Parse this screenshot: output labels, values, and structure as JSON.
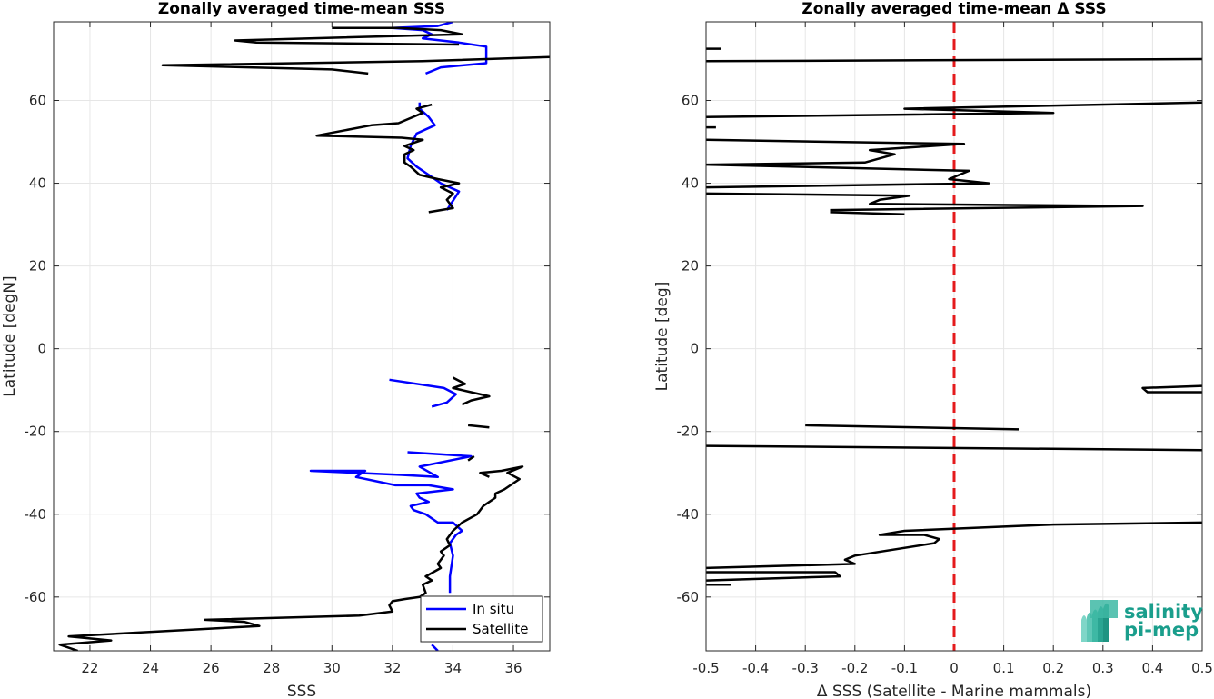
{
  "chart_data": [
    {
      "type": "line",
      "title": "Zonally averaged time-mean SSS",
      "xlabel": "SSS",
      "ylabel": "Latitude [degN]",
      "xlim": [
        20.8,
        37.2
      ],
      "ylim": [
        -73,
        79
      ],
      "xticks": [
        "22",
        "24",
        "26",
        "28",
        "30",
        "32",
        "34",
        "36"
      ],
      "yticks": [
        "-60",
        "-40",
        "-20",
        "0",
        "20",
        "40",
        "60"
      ],
      "grid": true,
      "legend_position": "bottom-right",
      "series": [
        {
          "name": "In situ",
          "color": "#0000ff",
          "segments": [
            [
              [
                33.3,
                -71.5
              ],
              [
                33.5,
                -73
              ]
            ],
            [
              [
                33.9,
                -59
              ],
              [
                33.9,
                -55
              ],
              [
                34.0,
                -50
              ],
              [
                33.9,
                -47
              ],
              [
                34.1,
                -45
              ],
              [
                34.3,
                -44
              ],
              [
                34.0,
                -42
              ],
              [
                33.5,
                -42
              ],
              [
                33.1,
                -40
              ],
              [
                32.7,
                -39
              ],
              [
                32.6,
                -38
              ],
              [
                33.2,
                -37
              ],
              [
                32.9,
                -36
              ],
              [
                32.8,
                -35
              ],
              [
                34.0,
                -34
              ],
              [
                33.2,
                -33
              ],
              [
                32.1,
                -33
              ],
              [
                30.8,
                -31
              ],
              [
                31.1,
                -29.5
              ],
              [
                29.3,
                -29.5
              ],
              [
                32.3,
                -30.5
              ],
              [
                33.5,
                -31
              ],
              [
                32.9,
                -28.5
              ],
              [
                34.6,
                -26
              ],
              [
                32.5,
                -25
              ]
            ],
            [
              [
                31.9,
                -7.5
              ],
              [
                33.7,
                -9.5
              ],
              [
                34.1,
                -11
              ],
              [
                33.8,
                -13
              ],
              [
                33.3,
                -14
              ]
            ],
            [
              [
                33.8,
                33.5
              ],
              [
                34.2,
                38
              ],
              [
                33.6,
                40
              ],
              [
                33.2,
                42
              ],
              [
                32.8,
                44
              ],
              [
                32.5,
                46
              ],
              [
                32.6,
                49
              ],
              [
                32.8,
                52
              ],
              [
                33.4,
                54
              ],
              [
                33.2,
                56
              ],
              [
                32.9,
                58
              ],
              [
                32.9,
                59.5
              ]
            ],
            [
              [
                33.1,
                66.5
              ],
              [
                33.6,
                68
              ],
              [
                35.1,
                69
              ],
              [
                35.1,
                70.5
              ],
              [
                35.1,
                73
              ],
              [
                34.2,
                74
              ],
              [
                33.0,
                75
              ],
              [
                33.3,
                76
              ],
              [
                33.0,
                77
              ],
              [
                32.0,
                77.5
              ],
              [
                33.5,
                78
              ],
              [
                34.0,
                79
              ]
            ]
          ]
        },
        {
          "name": "Satellite",
          "color": "#000000",
          "segments": [
            [
              [
                21.6,
                -73
              ],
              [
                21.0,
                -71.5
              ],
              [
                22.7,
                -70.5
              ],
              [
                21.3,
                -69.5
              ],
              [
                27.6,
                -67
              ],
              [
                27.1,
                -66
              ],
              [
                25.8,
                -65.5
              ],
              [
                30.9,
                -64.5
              ],
              [
                32.0,
                -63.5
              ],
              [
                31.9,
                -62
              ],
              [
                32.0,
                -61
              ],
              [
                32.4,
                -60.5
              ],
              [
                32.9,
                -60
              ],
              [
                33.1,
                -59
              ],
              [
                33.0,
                -57
              ],
              [
                33.3,
                -56
              ],
              [
                33.1,
                -55
              ],
              [
                33.6,
                -53
              ],
              [
                33.5,
                -52
              ],
              [
                33.7,
                -50
              ],
              [
                33.6,
                -49
              ],
              [
                33.9,
                -47.5
              ],
              [
                33.8,
                -46
              ],
              [
                34.0,
                -44
              ],
              [
                34.3,
                -42
              ],
              [
                34.8,
                -40
              ],
              [
                35.0,
                -38
              ],
              [
                35.4,
                -36
              ],
              [
                35.4,
                -35
              ],
              [
                35.7,
                -34
              ],
              [
                35.9,
                -33
              ],
              [
                36.2,
                -31.5
              ],
              [
                35.8,
                -30
              ],
              [
                36.3,
                -28.5
              ],
              [
                35.6,
                -29.5
              ],
              [
                34.9,
                -30
              ],
              [
                35.2,
                -31
              ]
            ],
            [
              [
                34.5,
                -27
              ],
              [
                34.7,
                -26
              ]
            ],
            [
              [
                34.5,
                -18.5
              ],
              [
                35.2,
                -19
              ]
            ],
            [
              [
                34.3,
                -13.5
              ],
              [
                34.6,
                -12.5
              ],
              [
                35.2,
                -11.5
              ],
              [
                34.6,
                -10.5
              ],
              [
                34.0,
                -9.5
              ],
              [
                34.4,
                -8.5
              ],
              [
                34.0,
                -7
              ]
            ],
            [
              [
                33.2,
                33
              ],
              [
                34.0,
                34
              ],
              [
                33.8,
                36
              ],
              [
                34.0,
                37.5
              ],
              [
                33.6,
                39
              ],
              [
                34.2,
                40
              ],
              [
                33.5,
                41
              ],
              [
                32.9,
                42
              ],
              [
                32.6,
                44
              ],
              [
                32.4,
                45
              ],
              [
                32.4,
                47
              ],
              [
                32.7,
                48
              ],
              [
                32.4,
                49
              ],
              [
                33.0,
                50.5
              ],
              [
                32.3,
                51
              ],
              [
                29.5,
                51.5
              ],
              [
                31.3,
                54
              ],
              [
                32.2,
                54.5
              ],
              [
                33.0,
                57
              ],
              [
                32.8,
                58
              ],
              [
                33.3,
                59
              ]
            ],
            [
              [
                31.2,
                66.5
              ],
              [
                30.0,
                67.5
              ],
              [
                24.4,
                68.5
              ],
              [
                33.0,
                69.5
              ],
              [
                37.2,
                70.5
              ]
            ],
            [
              [
                34.2,
                73.5
              ],
              [
                27.5,
                74
              ],
              [
                26.8,
                74.5
              ],
              [
                34.3,
                76
              ],
              [
                33.6,
                77
              ],
              [
                32.2,
                77.5
              ],
              [
                30.0,
                77.5
              ]
            ]
          ]
        }
      ]
    },
    {
      "type": "line",
      "title": "Zonally averaged time-mean Δ SSS",
      "xlabel": "Δ SSS (Satellite - Marine mammals)",
      "ylabel": "Latitude [deg]",
      "xlim": [
        -0.5,
        0.5
      ],
      "ylim": [
        -73,
        79
      ],
      "xticks": [
        "-0.5",
        "-0.4",
        "-0.3",
        "-0.2",
        "-0.1",
        "0",
        "0.1",
        "0.2",
        "0.3",
        "0.4",
        "0.5"
      ],
      "yticks": [
        "-60",
        "-40",
        "-20",
        "0",
        "20",
        "40",
        "60"
      ],
      "grid": true,
      "reference_line": {
        "x": 0,
        "color": "#e41a1c",
        "style": "dashed"
      },
      "series": [
        {
          "name": "",
          "color": "#000000",
          "segments": [
            [
              [
                -0.45,
                -57
              ],
              [
                -0.5,
                -57
              ]
            ],
            [
              [
                -0.5,
                -56
              ],
              [
                -0.23,
                -55
              ],
              [
                -0.24,
                -54
              ],
              [
                -0.5,
                -54
              ]
            ],
            [
              [
                -0.5,
                -53
              ],
              [
                -0.2,
                -52
              ],
              [
                -0.22,
                -51
              ],
              [
                -0.2,
                -50
              ],
              [
                -0.04,
                -47
              ],
              [
                -0.03,
                -46
              ],
              [
                -0.06,
                -45
              ],
              [
                -0.15,
                -45
              ],
              [
                -0.1,
                -44
              ],
              [
                0.1,
                -43
              ],
              [
                0.2,
                -42.5
              ],
              [
                0.5,
                -42
              ]
            ],
            [
              [
                -0.5,
                -23.5
              ],
              [
                0.5,
                -24.5
              ]
            ],
            [
              [
                -0.3,
                -18.5
              ],
              [
                0.13,
                -19.5
              ]
            ],
            [
              [
                0.5,
                -9
              ],
              [
                0.38,
                -9.5
              ],
              [
                0.39,
                -10.5
              ],
              [
                0.5,
                -10.5
              ]
            ],
            [
              [
                -0.25,
                33
              ],
              [
                -0.1,
                32.5
              ]
            ],
            [
              [
                -0.25,
                33.5
              ],
              [
                0.38,
                34.5
              ],
              [
                -0.17,
                35
              ],
              [
                -0.15,
                36
              ],
              [
                -0.09,
                37
              ],
              [
                -0.5,
                37.5
              ]
            ],
            [
              [
                -0.5,
                39
              ],
              [
                0.07,
                40
              ],
              [
                -0.01,
                41
              ],
              [
                0.03,
                43
              ],
              [
                -0.5,
                44.5
              ],
              [
                -0.18,
                45
              ],
              [
                -0.12,
                47
              ],
              [
                -0.17,
                48
              ],
              [
                0.02,
                49.5
              ],
              [
                -0.5,
                50.5
              ]
            ],
            [
              [
                -0.48,
                53.5
              ],
              [
                -0.5,
                53.5
              ]
            ],
            [
              [
                -0.5,
                56
              ],
              [
                0.2,
                57
              ],
              [
                -0.1,
                58
              ],
              [
                0.5,
                59.5
              ]
            ],
            [
              [
                -0.5,
                69.5
              ],
              [
                0.5,
                70
              ]
            ],
            [
              [
                -0.47,
                72.5
              ],
              [
                -0.5,
                72.5
              ]
            ]
          ]
        }
      ]
    }
  ],
  "logo": {
    "line1": "salinity",
    "line2": "pi-mep"
  }
}
